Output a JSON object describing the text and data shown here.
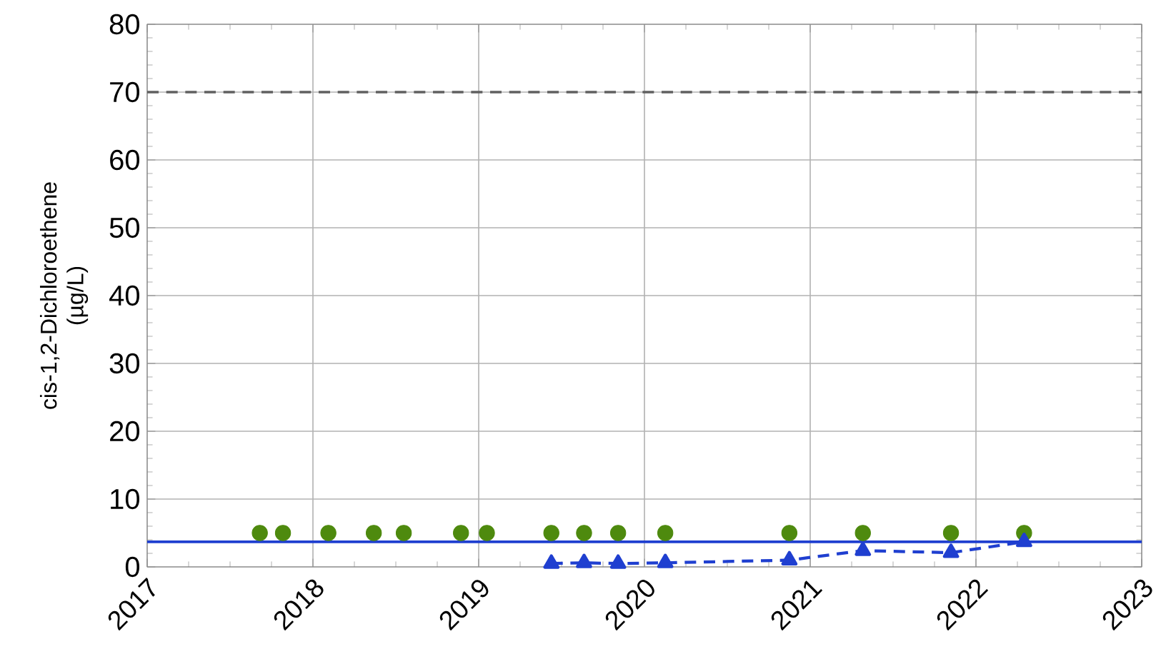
{
  "chart_data": {
    "type": "scatter",
    "ylabel": "cis-1,2-Dichloroethene\n(µg/L)",
    "xlim": [
      "2017",
      "2023"
    ],
    "xticks": [
      "2017",
      "2018",
      "2019",
      "2020",
      "2021",
      "2022",
      "2023"
    ],
    "ylim": [
      0,
      80
    ],
    "yticks": [
      0,
      10,
      20,
      30,
      40,
      50,
      60,
      70,
      80
    ],
    "grid": true,
    "series": [
      {
        "color": "#4e8a0e",
        "marker": "circle",
        "x": [
          "2017-09-06",
          "2017-10-27",
          "2018-02-04",
          "2018-05-15",
          "2018-07-20",
          "2018-11-23",
          "2019-01-19",
          "2019-06-10",
          "2019-08-21",
          "2019-11-04",
          "2020-02-16",
          "2020-11-16",
          "2021-04-27",
          "2021-11-07",
          "2022-04-17"
        ],
        "values": [
          5,
          5,
          5,
          5,
          5,
          5,
          5,
          5,
          5,
          5,
          5,
          5,
          5,
          5,
          5
        ]
      },
      {
        "type": "line",
        "color": "#1f3fd0",
        "marker": "triangle",
        "line_style": "dashed",
        "x": [
          "2019-06-10",
          "2019-08-21",
          "2019-11-04",
          "2020-02-16",
          "2020-11-16",
          "2021-04-27",
          "2021-11-07",
          "2022-04-17"
        ],
        "values": [
          0.5,
          0.6,
          0.5,
          0.6,
          1.0,
          2.4,
          2.1,
          3.7
        ]
      }
    ],
    "ref_lines": [
      {
        "axis": "y",
        "value": 70,
        "color": "#606060",
        "line_style": "dashed"
      },
      {
        "axis": "y",
        "value": 3.7,
        "color": "#1f3fd0",
        "line_style": "solid"
      }
    ]
  }
}
